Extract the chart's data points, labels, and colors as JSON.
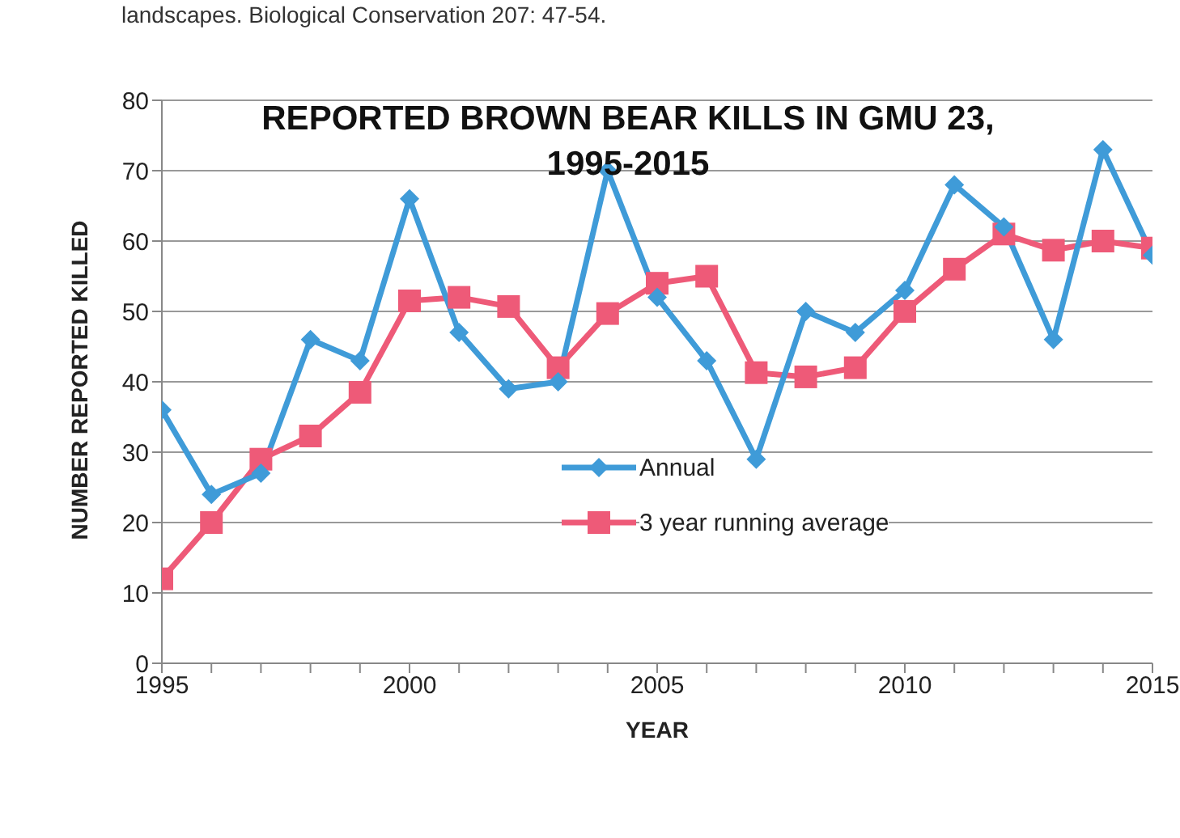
{
  "chart_data": {
    "type": "line",
    "title": "REPORTED BROWN BEAR KILLS IN GMU 23, 1995-2015",
    "xlabel": "YEAR",
    "ylabel": "NUMBER REPORTED KILLED",
    "annotations": [
      "landscapes. Biological Conservation 207: 47-54."
    ],
    "x": [
      1995,
      1996,
      1997,
      1998,
      1999,
      2000,
      2001,
      2002,
      2003,
      2004,
      2005,
      2006,
      2007,
      2008,
      2009,
      2010,
      2011,
      2012,
      2013,
      2014,
      2015
    ],
    "series": [
      {
        "name": "Annual",
        "color": "#3f9bd8",
        "marker": "diamond",
        "values": [
          36,
          24,
          27,
          46,
          43,
          66,
          47,
          39,
          40,
          70,
          52,
          43,
          29,
          50,
          47,
          53,
          68,
          62,
          46,
          73,
          58
        ]
      },
      {
        "name": "3 year running average",
        "color": "#ee5a78",
        "marker": "square",
        "values": [
          12,
          20,
          29,
          32.3,
          38.5,
          51.5,
          52,
          50.7,
          42,
          49.7,
          54,
          55,
          41.3,
          40.7,
          42,
          50,
          56,
          61,
          58.7,
          60,
          59
        ]
      }
    ],
    "xlim": [
      1995,
      2015
    ],
    "xticks": [
      1995,
      {
        "value": 1996,
        "label": null
      },
      {
        "value": 1997,
        "label": null
      },
      {
        "value": 1998,
        "label": null
      },
      {
        "value": 1999,
        "label": null
      },
      2000,
      {
        "value": 2001,
        "label": null
      },
      {
        "value": 2002,
        "label": null
      },
      {
        "value": 2003,
        "label": null
      },
      {
        "value": 2004,
        "label": null
      },
      2005,
      {
        "value": 2006,
        "label": null
      },
      {
        "value": 2007,
        "label": null
      },
      {
        "value": 2008,
        "label": null
      },
      {
        "value": 2009,
        "label": null
      },
      2010,
      {
        "value": 2011,
        "label": null
      },
      {
        "value": 2012,
        "label": null
      },
      {
        "value": 2013,
        "label": null
      },
      {
        "value": 2014,
        "label": null
      },
      2015
    ],
    "ylim": [
      0,
      80
    ],
    "yticks": [
      0,
      10,
      20,
      30,
      40,
      50,
      60,
      70,
      80
    ],
    "grid": "y",
    "legend": "bottom",
    "line_style": "solid"
  }
}
